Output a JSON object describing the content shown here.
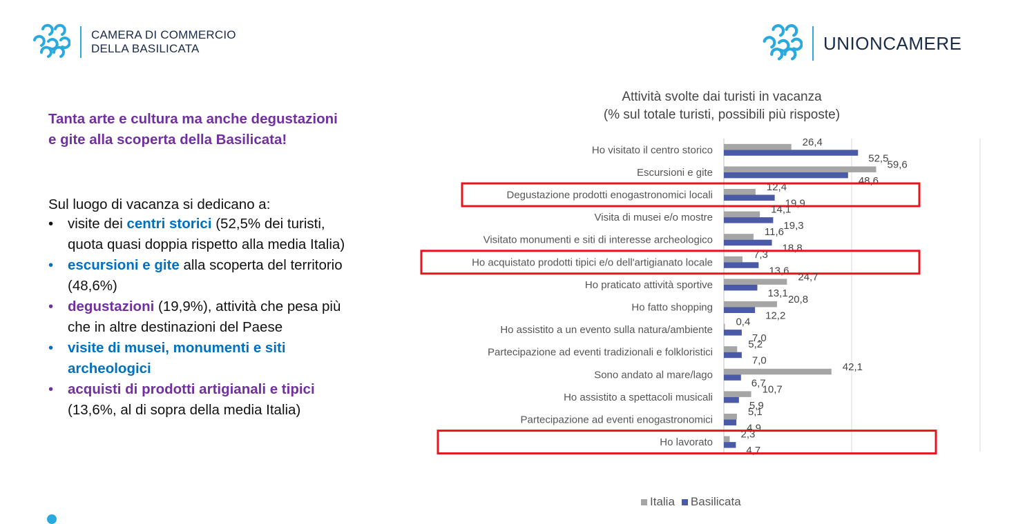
{
  "header": {
    "left_logo_line1": "CAMERA DI COMMERCIO",
    "left_logo_line2": "DELLA BASILICATA",
    "right_logo_text": "UNIONCAMERE"
  },
  "left_text": {
    "headline": "Tanta arte e cultura ma anche degustazioni e gite alla scoperta della Basilicata!",
    "intro": "Sul luogo di vacanza si dedicano a:",
    "bullet_char": "•",
    "bullets": [
      {
        "pre": "visite dei ",
        "hl": "centri storici",
        "post": " (52,5% dei turisti, quota quasi doppia rispetto alla media Italia)"
      },
      {
        "pre": "",
        "hl": "escursioni e gite",
        "post": " alla scoperta del territorio (48,6%)"
      },
      {
        "pre": "",
        "hl": "degustazioni",
        "post": " (19,9%), attività che pesa più che in altre destinazioni del Paese"
      },
      {
        "pre": "",
        "hl": "visite di musei, monumenti e siti archeologici",
        "post": ""
      },
      {
        "pre": "",
        "hl": "acquisti di prodotti artigianali e tipici",
        "post": " (13,6%, al di sopra della media Italia)"
      }
    ]
  },
  "colors": {
    "italia": "#a5a5a5",
    "basilicata": "#4b5aa7",
    "highlight_box": "#e8141b",
    "blue_text": "#0070c0",
    "purple_text": "#7030a0"
  },
  "chart_data": {
    "type": "bar",
    "orientation": "horizontal",
    "title_line1": "Attività  svolte dai turisti in vacanza",
    "title_line2": "(% sul totale turisti, possibili più risposte)",
    "categories": [
      "Ho visitato il centro storico",
      "Escursioni e gite",
      "Degustazione prodotti enogastronomici locali",
      "Visita di musei e/o mostre",
      "Visitato monumenti e siti di interesse archeologico",
      "Ho acquistato prodotti tipici e/o dell'artigianato locale",
      "Ho praticato attività sportive",
      "Ho fatto shopping",
      "Ho assistito a un evento sulla natura/ambiente",
      "Partecipazione ad eventi tradizionali e folkloristici",
      "Sono andato al mare/lago",
      "Ho assistito a spettacoli musicali",
      "Partecipazione ad eventi enogastronomici",
      "Ho lavorato"
    ],
    "series": [
      {
        "name": "Italia",
        "values": [
          26.4,
          59.6,
          12.4,
          14.1,
          11.6,
          7.3,
          24.7,
          20.8,
          0.4,
          5.2,
          42.1,
          10.7,
          5.1,
          2.3
        ],
        "labels": [
          "26,4",
          "59,6",
          "12,4",
          "14,1",
          "11,6",
          "7,3",
          "24,7",
          "20,8",
          "0,4",
          "5,2",
          "42,1",
          "10,7",
          "5,1",
          "2,3"
        ]
      },
      {
        "name": "Basilicata",
        "values": [
          52.5,
          48.6,
          19.9,
          19.3,
          18.8,
          13.6,
          13.1,
          12.2,
          7.0,
          7.0,
          6.7,
          5.9,
          4.9,
          4.7
        ],
        "labels": [
          "52,5",
          "48,6",
          "19,9",
          "19,3",
          "18,8",
          "13,6",
          "13,1",
          "12,2",
          "7,0",
          "7,0",
          "6,7",
          "5,9",
          "4,9",
          "4,7"
        ]
      }
    ],
    "highlighted_categories": [
      "Degustazione prodotti enogastronomici locali",
      "Ho acquistato prodotti tipici e/o dell'artigianato locale",
      "Ho lavorato"
    ],
    "xlim": [
      0,
      100
    ],
    "gridlines": [
      0,
      50
    ],
    "legend_position": "bottom"
  }
}
